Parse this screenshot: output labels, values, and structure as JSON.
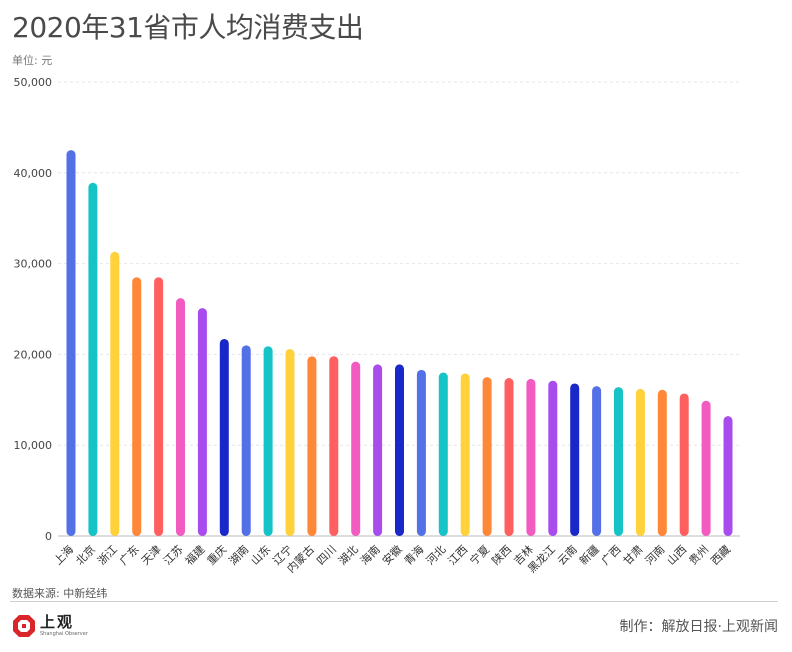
{
  "title": "2020年31省市人均消费支出",
  "unit_label": "单位: 元",
  "source": "数据来源: 中新经纬",
  "credit": "制作：解放日报·上观新闻",
  "logo": {
    "cn": "上观",
    "en": "Shanghai Observer"
  },
  "colors": [
    "#5470e6",
    "#16c4c8",
    "#ffd23c",
    "#ff8738",
    "#ff5f5f",
    "#f25cc0",
    "#a94cee",
    "#1a27c9"
  ],
  "chart_data": {
    "type": "bar",
    "title": "2020年31省市人均消费支出",
    "ylabel": "单位: 元",
    "ylim": [
      0,
      50000
    ],
    "yticks": [
      0,
      10000,
      20000,
      30000,
      40000,
      50000
    ],
    "ytick_labels": [
      "0",
      "10,000",
      "20,000",
      "30,000",
      "40,000",
      "50,000"
    ],
    "grid": true,
    "categories": [
      "上海",
      "北京",
      "浙江",
      "广东",
      "天津",
      "江苏",
      "福建",
      "重庆",
      "湖南",
      "山东",
      "辽宁",
      "内蒙古",
      "四川",
      "湖北",
      "海南",
      "安徽",
      "青海",
      "河北",
      "江西",
      "宁夏",
      "陕西",
      "吉林",
      "黑龙江",
      "云南",
      "新疆",
      "广西",
      "甘肃",
      "河南",
      "山西",
      "贵州",
      "西藏"
    ],
    "values": [
      42500,
      38900,
      31300,
      28500,
      28500,
      26200,
      25100,
      21700,
      21000,
      20900,
      20600,
      19800,
      19800,
      19200,
      18900,
      18900,
      18300,
      18000,
      17900,
      17500,
      17400,
      17300,
      17100,
      16800,
      16500,
      16400,
      16200,
      16100,
      15700,
      14900,
      13200
    ]
  }
}
